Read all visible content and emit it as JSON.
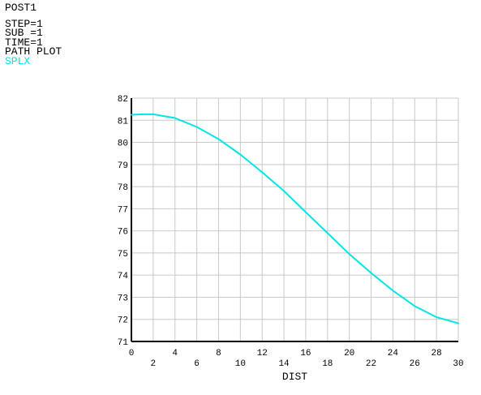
{
  "header": {
    "title": "POST1",
    "step": "STEP=1",
    "sub": "SUB =1",
    "time": "TIME=1",
    "plot_type": "PATH PLOT",
    "series_label": "SPLX"
  },
  "colors": {
    "background": "#ffffff",
    "axis": "#000000",
    "grid": "#c8c8c8",
    "series": "#00e5e5",
    "text": "#000000"
  },
  "chart_data": {
    "type": "line",
    "title": "",
    "xlabel": "DIST",
    "ylabel": "",
    "xlim": [
      0,
      30
    ],
    "ylim": [
      71,
      82
    ],
    "x_ticks": [
      0,
      2,
      4,
      6,
      8,
      10,
      12,
      14,
      16,
      18,
      20,
      22,
      24,
      26,
      28,
      30
    ],
    "y_ticks": [
      71,
      72,
      73,
      74,
      75,
      76,
      77,
      78,
      79,
      80,
      81,
      82
    ],
    "grid": true,
    "series": [
      {
        "name": "SPLX",
        "x": [
          0,
          1,
          2,
          4,
          6,
          8,
          10,
          12,
          14,
          16,
          18,
          20,
          22,
          24,
          26,
          28,
          30
        ],
        "y": [
          81.25,
          81.27,
          81.27,
          81.1,
          80.7,
          80.15,
          79.45,
          78.65,
          77.8,
          76.85,
          75.9,
          74.95,
          74.1,
          73.3,
          72.6,
          72.1,
          71.82
        ]
      }
    ]
  }
}
